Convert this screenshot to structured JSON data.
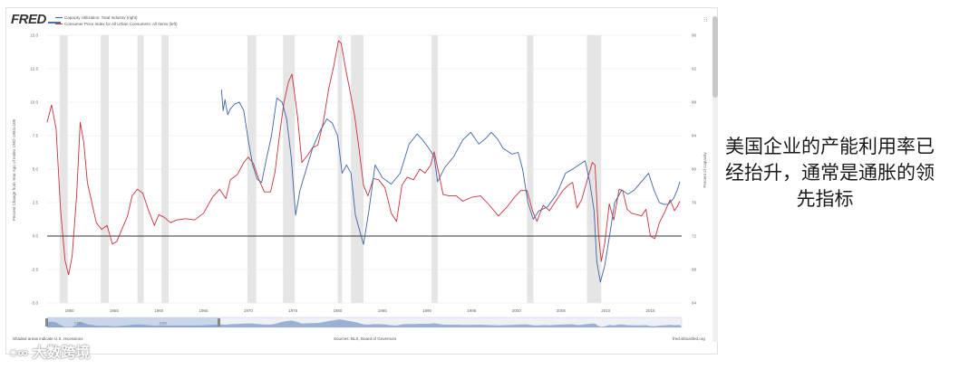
{
  "branding": {
    "logo_text": "FRED",
    "watermark": "大数跨境",
    "source_note": "Sources: BLS, Board of Governors",
    "site": "fred.stlouisfed.org",
    "myfred_note": "Shaded areas indicate U.S. recessions"
  },
  "caption": {
    "line1": "美国企业的产能利用率已",
    "line2": "经抬升，通常是通胀的领",
    "line3": "先指标"
  },
  "colors": {
    "cpi": "#c8323c",
    "capu": "#3c64a8",
    "recession": "#e5e5e5",
    "zero_line": "#333333",
    "grid": "#e6e6e6",
    "navigator": "#7d9bc7"
  },
  "chart_data": {
    "type": "line",
    "title": "",
    "xlabel": "",
    "ylabel": "Percent Change from Year Ago of Index 1982-1984=100",
    "y2label": "Percent of Capacity",
    "xlim": [
      1947.5,
      2018.5
    ],
    "ylim": [
      -5.0,
      15.0
    ],
    "y2lim": [
      64,
      96
    ],
    "x_ticks": [
      1950,
      1955,
      1960,
      1965,
      1970,
      1975,
      1980,
      1985,
      1990,
      1995,
      2000,
      2005,
      2010,
      2015
    ],
    "y_ticks": [
      -5.0,
      -2.5,
      0.0,
      2.5,
      5.0,
      7.5,
      10.0,
      12.5,
      15.0
    ],
    "y_tick_labels": [
      "-5.0",
      "-2.5",
      "0.0",
      "2.5",
      "5.0",
      "7.5",
      "10.0",
      "12.5",
      "15.0"
    ],
    "y2_ticks": [
      64,
      68,
      72,
      76,
      80,
      84,
      88,
      92,
      96
    ],
    "recessions": [
      [
        1948.9,
        1949.8
      ],
      [
        1953.5,
        1954.4
      ],
      [
        1957.6,
        1958.3
      ],
      [
        1960.3,
        1961.1
      ],
      [
        1969.9,
        1970.9
      ],
      [
        1973.9,
        1975.2
      ],
      [
        1980.0,
        1980.5
      ],
      [
        1981.5,
        1982.9
      ],
      [
        1990.5,
        1991.2
      ],
      [
        2001.2,
        2001.9
      ],
      [
        2007.9,
        2009.5
      ]
    ],
    "navigator": {
      "labels": [
        "1950",
        "1960"
      ],
      "range": [
        1947.5,
        2018.5
      ]
    },
    "series": [
      {
        "name": "Consumer Price Index for All Urban Consumers: All Items (left)",
        "axis": "left",
        "x": [
          1947.5,
          1948.0,
          1948.5,
          1949.0,
          1949.5,
          1949.9,
          1950.3,
          1950.8,
          1951.2,
          1951.6,
          1952.0,
          1952.5,
          1953.0,
          1953.6,
          1954.2,
          1954.8,
          1955.3,
          1955.8,
          1956.5,
          1957.0,
          1957.6,
          1958.2,
          1958.8,
          1959.5,
          1960.0,
          1960.6,
          1961.3,
          1962.0,
          1963.0,
          1964.0,
          1965.0,
          1966.0,
          1966.8,
          1967.5,
          1968.0,
          1968.8,
          1969.5,
          1970.0,
          1970.6,
          1971.2,
          1971.8,
          1972.5,
          1973.0,
          1973.5,
          1974.0,
          1974.5,
          1974.9,
          1975.5,
          1976.0,
          1976.6,
          1977.2,
          1977.8,
          1978.4,
          1979.0,
          1979.6,
          1980.1,
          1980.4,
          1980.9,
          1981.4,
          1981.9,
          1982.4,
          1982.9,
          1983.4,
          1984.0,
          1984.6,
          1985.3,
          1986.0,
          1986.6,
          1987.2,
          1987.8,
          1988.5,
          1989.2,
          1989.8,
          1990.4,
          1990.8,
          1991.3,
          1991.8,
          1992.5,
          1993.3,
          1994.0,
          1995.0,
          1996.0,
          1997.0,
          1998.0,
          1999.0,
          1999.8,
          2000.5,
          2001.2,
          2001.8,
          2002.3,
          2003.0,
          2003.7,
          2004.5,
          2005.2,
          2005.8,
          2006.3,
          2006.8,
          2007.3,
          2007.9,
          2008.5,
          2008.8,
          2009.2,
          2009.5,
          2009.9,
          2010.4,
          2010.9,
          2011.5,
          2011.9,
          2012.4,
          2012.9,
          2013.5,
          2014.0,
          2014.5,
          2015.0,
          2015.5,
          2016.0,
          2016.6,
          2017.2,
          2017.7,
          2018.0,
          2018.3
        ],
        "values": [
          8.5,
          9.8,
          8.0,
          2.0,
          -1.8,
          -2.9,
          -1.5,
          3.0,
          8.5,
          7.0,
          4.0,
          2.5,
          1.0,
          0.5,
          0.8,
          -0.6,
          -0.4,
          0.4,
          1.5,
          3.0,
          3.5,
          3.2,
          2.0,
          0.8,
          1.6,
          1.4,
          1.0,
          1.2,
          1.3,
          1.2,
          1.7,
          2.9,
          3.5,
          2.8,
          4.2,
          4.6,
          5.5,
          5.9,
          5.4,
          4.2,
          3.3,
          3.3,
          4.8,
          7.5,
          10.0,
          11.5,
          12.1,
          9.0,
          5.5,
          6.0,
          6.6,
          6.8,
          8.5,
          11.0,
          12.8,
          14.6,
          14.4,
          12.5,
          10.8,
          9.0,
          6.5,
          3.8,
          3.0,
          4.3,
          4.2,
          3.6,
          1.7,
          1.1,
          3.8,
          4.4,
          4.2,
          5.0,
          4.7,
          5.3,
          6.3,
          4.8,
          3.1,
          3.0,
          3.0,
          2.6,
          2.9,
          3.0,
          2.3,
          1.5,
          2.2,
          2.9,
          3.4,
          3.4,
          1.9,
          1.1,
          2.3,
          1.9,
          2.7,
          3.4,
          3.8,
          4.0,
          2.1,
          2.7,
          4.1,
          5.5,
          5.3,
          0.1,
          -1.9,
          -0.5,
          2.4,
          1.2,
          3.5,
          3.4,
          2.0,
          1.7,
          1.6,
          1.5,
          2.0,
          0.0,
          -0.2,
          1.0,
          1.8,
          2.7,
          1.9,
          2.2,
          2.6
        ]
      },
      {
        "name": "Capacity Utilization: Total Industry (right)",
        "axis": "right",
        "x": [
          1967.0,
          1967.2,
          1967.4,
          1967.7,
          1968.0,
          1968.5,
          1969.0,
          1969.5,
          1970.0,
          1970.5,
          1971.0,
          1971.5,
          1972.0,
          1972.6,
          1973.2,
          1973.8,
          1974.3,
          1974.8,
          1975.3,
          1975.8,
          1976.5,
          1977.2,
          1978.0,
          1978.8,
          1979.4,
          1980.0,
          1980.5,
          1981.0,
          1981.5,
          1982.0,
          1982.5,
          1982.9,
          1983.5,
          1984.2,
          1985.0,
          1986.0,
          1987.0,
          1988.0,
          1988.9,
          1989.5,
          1990.2,
          1990.8,
          1991.2,
          1992.0,
          1993.0,
          1994.0,
          1994.9,
          1995.8,
          1996.5,
          1997.2,
          1997.9,
          1998.5,
          1999.5,
          2000.2,
          2000.7,
          2001.3,
          2001.9,
          2002.5,
          2003.5,
          2004.5,
          2005.5,
          2006.3,
          2007.0,
          2007.7,
          2008.2,
          2008.7,
          2009.0,
          2009.4,
          2009.9,
          2010.5,
          2011.0,
          2011.8,
          2012.5,
          2013.2,
          2014.0,
          2014.8,
          2015.4,
          2016.0,
          2016.5,
          2017.0,
          2017.6,
          2018.0,
          2018.3
        ],
        "values": [
          89.5,
          87.0,
          88.3,
          86.5,
          87.2,
          87.8,
          88.0,
          87.0,
          83.5,
          80.5,
          78.8,
          78.4,
          81.0,
          84.0,
          88.5,
          88.0,
          86.0,
          81.5,
          74.5,
          77.5,
          80.0,
          82.5,
          84.5,
          86.0,
          85.5,
          84.0,
          79.5,
          80.5,
          79.5,
          74.5,
          72.5,
          71.0,
          75.0,
          80.5,
          79.0,
          78.2,
          79.5,
          83.0,
          84.2,
          83.5,
          82.5,
          81.5,
          78.5,
          80.2,
          81.5,
          83.5,
          84.4,
          83.0,
          83.6,
          84.4,
          83.6,
          82.5,
          81.8,
          82.0,
          80.0,
          76.0,
          74.0,
          75.0,
          75.5,
          77.0,
          79.5,
          80.0,
          80.5,
          81.0,
          78.5,
          75.0,
          69.0,
          66.5,
          68.5,
          72.5,
          76.0,
          77.5,
          77.0,
          77.5,
          78.5,
          79.5,
          77.5,
          76.0,
          75.8,
          75.8,
          76.5,
          77.5,
          78.5
        ]
      }
    ]
  }
}
